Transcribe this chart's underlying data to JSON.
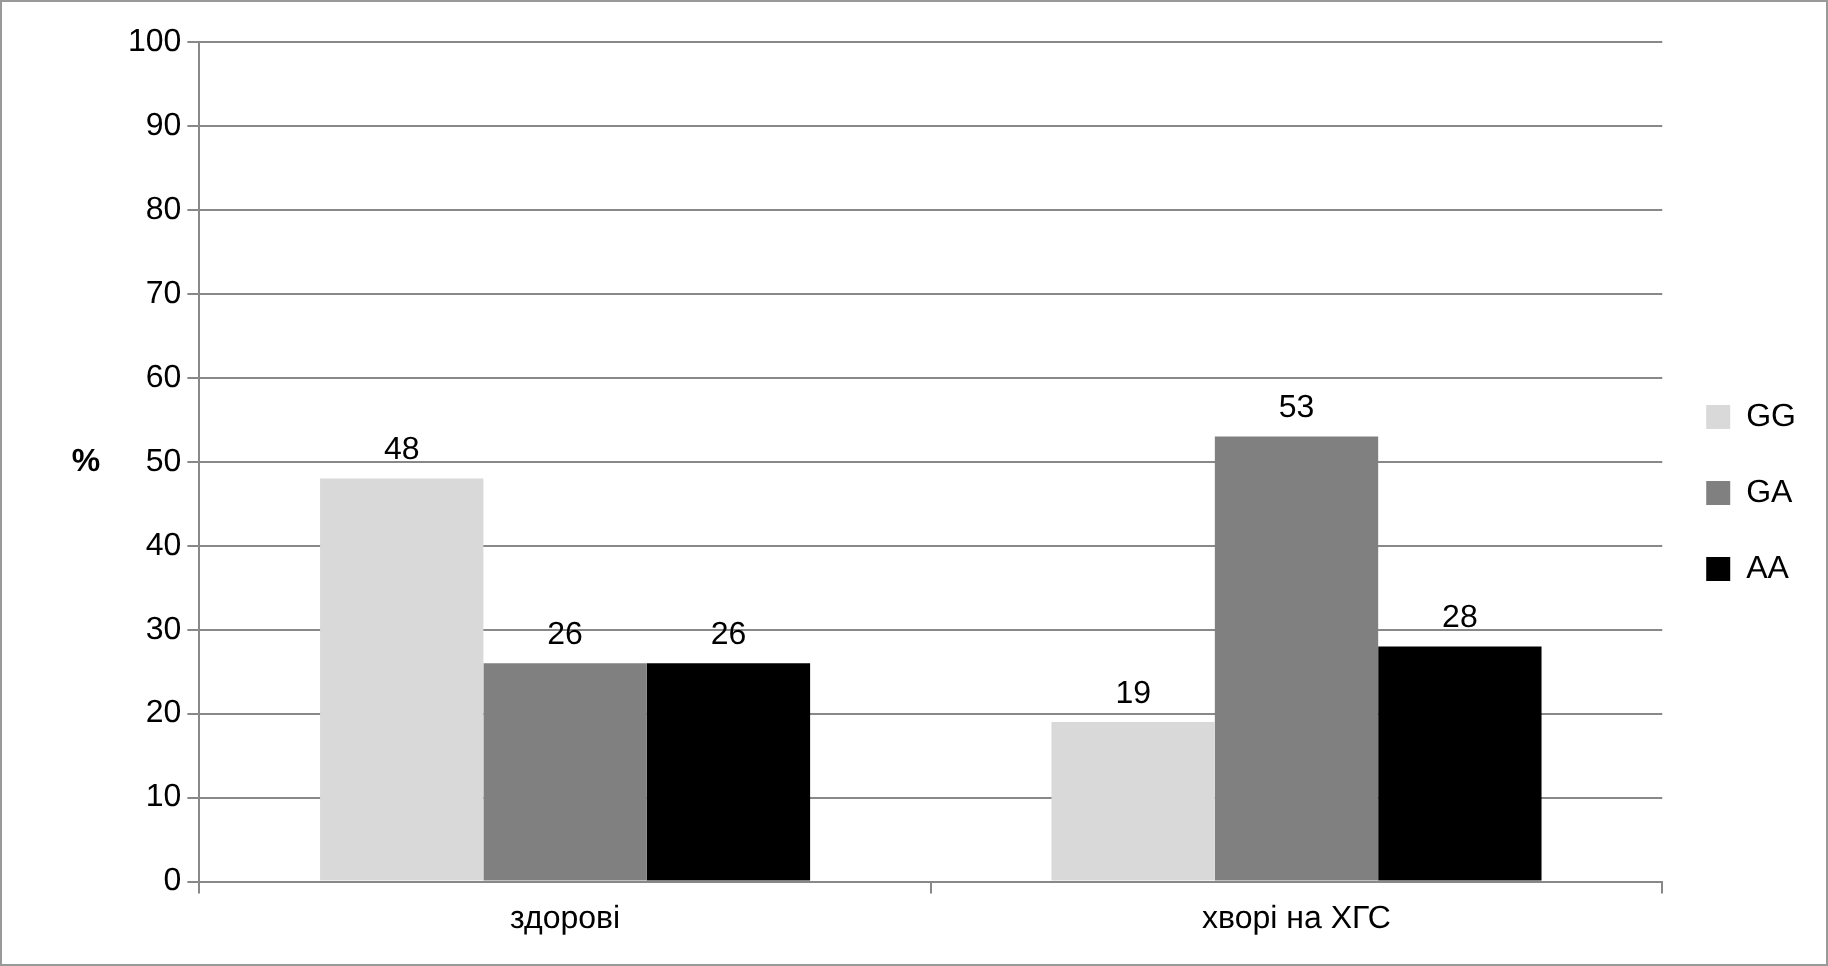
{
  "chart_data": {
    "type": "bar",
    "ylabel": "%",
    "categories": [
      "здорові",
      "хворі на ХГС"
    ],
    "series": [
      {
        "name": "GG",
        "color": "#d9d9d9",
        "values": [
          48,
          19
        ]
      },
      {
        "name": "GA",
        "color": "#808080",
        "values": [
          26,
          53
        ]
      },
      {
        "name": "AA",
        "color": "#000000",
        "values": [
          26,
          28
        ]
      }
    ],
    "ylim": [
      0,
      100
    ],
    "yticks": [
      0,
      10,
      20,
      30,
      40,
      50,
      60,
      70,
      80,
      90,
      100
    ],
    "grid": "y",
    "legend": "right",
    "data_labels": true
  }
}
